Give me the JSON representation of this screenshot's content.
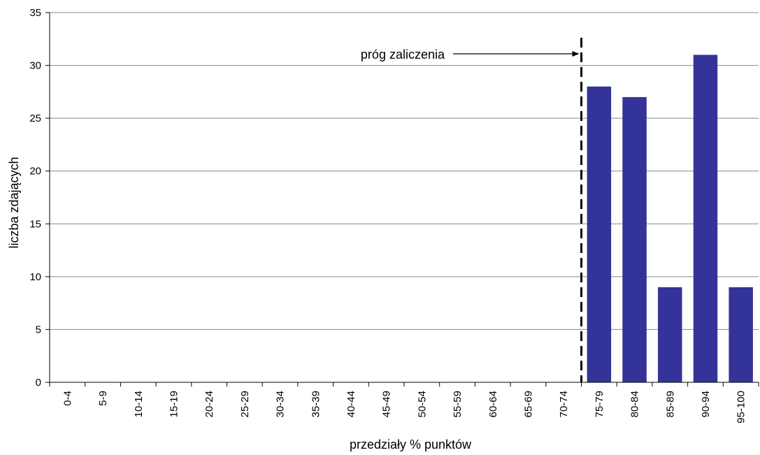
{
  "chart_data": {
    "type": "bar",
    "categories": [
      "0-4",
      "5-9",
      "10-14",
      "15-19",
      "20-24",
      "25-29",
      "30-34",
      "35-39",
      "40-44",
      "45-49",
      "50-54",
      "55-59",
      "60-64",
      "65-69",
      "70-74",
      "75-79",
      "80-84",
      "85-89",
      "90-94",
      "95-100"
    ],
    "values": [
      0,
      0,
      0,
      0,
      0,
      0,
      0,
      0,
      0,
      0,
      0,
      0,
      0,
      0,
      0,
      28,
      27,
      9,
      31,
      9
    ],
    "xlabel": "przedziały % punktów",
    "ylabel": "liczba zdających",
    "ylim": [
      0,
      35
    ],
    "yticks": [
      0,
      5,
      10,
      15,
      20,
      25,
      30,
      35
    ],
    "grid": true,
    "bar_color": "#333399",
    "threshold": {
      "label": "próg zaliczenia",
      "between_categories": [
        "70-74",
        "75-79"
      ],
      "style": "dashed"
    }
  }
}
